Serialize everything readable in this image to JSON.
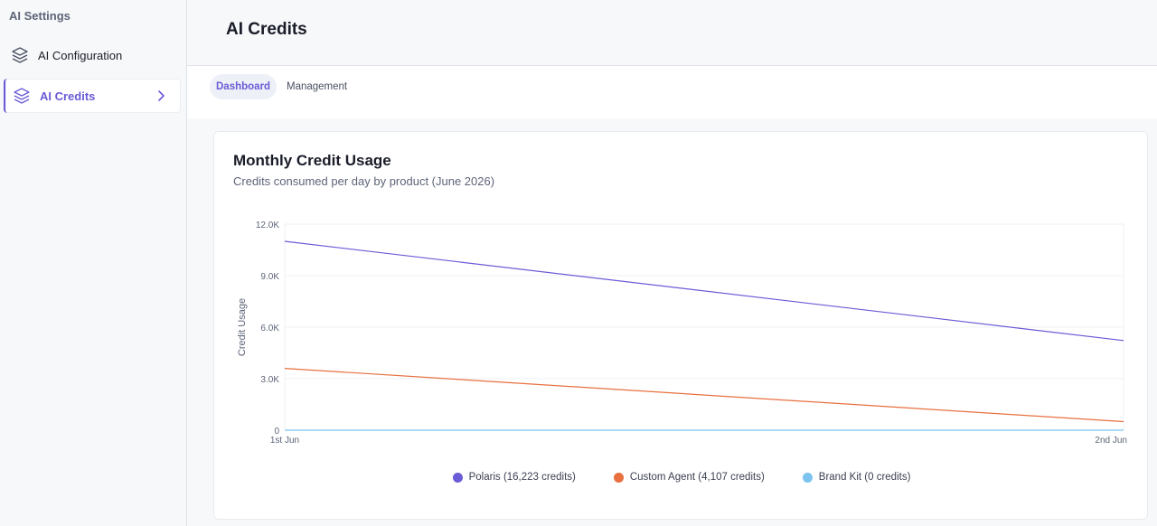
{
  "sidebar": {
    "title": "AI Settings",
    "items": [
      {
        "label": "AI Configuration",
        "icon": "layers-icon"
      },
      {
        "label": "AI Credits",
        "icon": "layers-icon",
        "active": true
      }
    ]
  },
  "header": {
    "title": "AI Credits"
  },
  "tabs": [
    {
      "label": "Dashboard",
      "active": true
    },
    {
      "label": "Management",
      "active": false
    }
  ],
  "colors": {
    "accent": "#6a5bd6",
    "polaris": "#6a5bd6",
    "custom_agent": "#e8703f",
    "brand_kit": "#7cc4ef"
  },
  "card": {
    "title": "Monthly Credit Usage",
    "subtitle": "Credits consumed per day by product (June 2026)"
  },
  "chart_data": {
    "type": "line",
    "title": "Monthly Credit Usage",
    "subtitle": "Credits consumed per day by product (June 2026)",
    "x": [
      "1st Jun",
      "2nd Jun"
    ],
    "xlabel": "",
    "ylabel": "Credit Usage",
    "ylim": [
      0,
      12000
    ],
    "yticks": [
      "0",
      "3.0K",
      "6.0K",
      "9.0K",
      "12.0K"
    ],
    "grid": true,
    "legend_position": "bottom",
    "series": [
      {
        "name": "Polaris (16,223 credits)",
        "values": [
          11000,
          5220
        ],
        "color": "#6a5bd6"
      },
      {
        "name": "Custom Agent (4,107 credits)",
        "values": [
          3600,
          500
        ],
        "color": "#e8703f"
      },
      {
        "name": "Brand Kit (0 credits)",
        "values": [
          0,
          0
        ],
        "color": "#7cc4ef"
      }
    ]
  }
}
